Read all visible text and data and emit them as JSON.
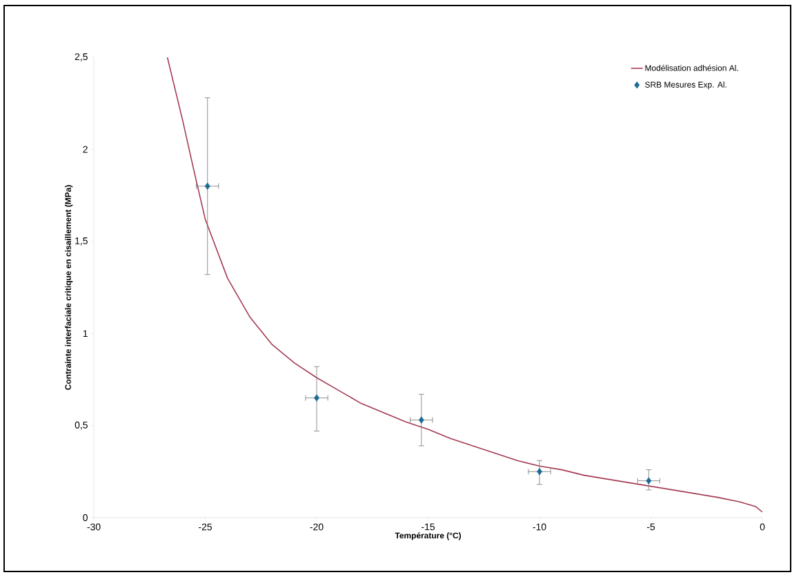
{
  "chart_data": {
    "type": "scatter",
    "xlabel": "Température (°C)",
    "ylabel": "Contrainte interfaciale critique en cisaillement (MPa)",
    "xlim": [
      -30,
      0
    ],
    "ylim": [
      0,
      2.5
    ],
    "xticks": [
      -30,
      -25,
      -20,
      -15,
      -10,
      -5,
      0
    ],
    "yticks": [
      0,
      {
        "value": 0.5,
        "label": "0,5"
      },
      1,
      {
        "value": 1.5,
        "label": "1,5"
      },
      2,
      {
        "value": 2.5,
        "label": "2,5"
      }
    ],
    "grid": false,
    "legend": "top right",
    "series": [
      {
        "name": "Modélisation adhésion Al.",
        "type": "line",
        "marker": "none",
        "line_style": "solid",
        "color": "#a33a50",
        "x": [
          -26.7,
          -26,
          -25.5,
          -25,
          -24,
          -23,
          -22,
          -21,
          -20,
          -19,
          -18,
          -17,
          -16,
          -15,
          -14,
          -13,
          -12,
          -11,
          -10,
          -9,
          -8,
          -7,
          -6,
          -5,
          -4,
          -3,
          -2,
          -1,
          -0.3,
          0
        ],
        "values": [
          2.5,
          2.15,
          1.88,
          1.62,
          1.3,
          1.09,
          0.94,
          0.84,
          0.76,
          0.69,
          0.62,
          0.57,
          0.52,
          0.48,
          0.43,
          0.39,
          0.35,
          0.31,
          0.28,
          0.26,
          0.23,
          0.21,
          0.19,
          0.17,
          0.15,
          0.13,
          0.11,
          0.085,
          0.06,
          0.03
        ]
      },
      {
        "name": "SRB Mesures Exp. Al.",
        "marker": "diamond",
        "color": "#1b6a96",
        "x": [
          -24.9,
          -20,
          -15.3,
          -10,
          -5.1
        ],
        "values": [
          1.8,
          0.65,
          0.53,
          0.25,
          0.2
        ],
        "errors": [
          [
            1.32,
            2.28
          ],
          [
            0.47,
            0.82
          ],
          [
            0.39,
            0.67
          ],
          [
            0.18,
            0.31
          ],
          [
            0.15,
            0.26
          ]
        ],
        "xerrors": [
          0.5,
          0.5,
          0.5,
          0.5,
          0.5
        ]
      }
    ]
  }
}
